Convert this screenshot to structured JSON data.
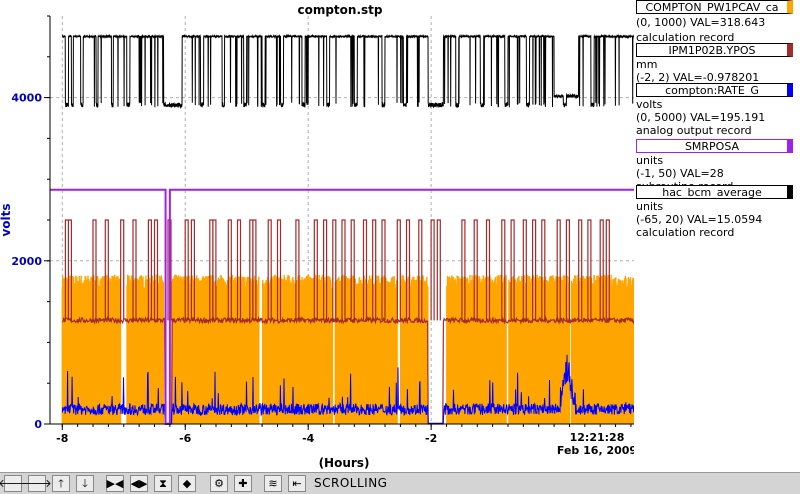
{
  "plot": {
    "title": "compton.stp",
    "xlabel": "(Hours)",
    "ylabel": "volts",
    "timestamp_time": "12:21:28",
    "timestamp_date": "Feb 16, 2009",
    "colors": {
      "black": "#000000",
      "orange": "#ffa500",
      "brown": "#a52a2a",
      "blue": "#0000ff",
      "purple": "#a020f0"
    }
  },
  "pvs": [
    {
      "name": "COMPTON_PW1PCAV_ca",
      "color": "#ffa500",
      "unit": "",
      "range": "(0, 1000) VAL=318.643",
      "type": "calculation record"
    },
    {
      "name": "IPM1P02B.YPOS",
      "color": "#a52a2a",
      "unit": "mm",
      "range": "(-2, 2) VAL=-0.978201",
      "type": ""
    },
    {
      "name": "compton:RATE_G",
      "color": "#0000ff",
      "unit": "volts",
      "range": "(0, 5000) VAL=195.191",
      "type": "analog output record"
    },
    {
      "name": "SMRPOSA",
      "color": "#a020f0",
      "unit": "units",
      "range": "(-1, 50) VAL=28",
      "type": "subroutine record"
    },
    {
      "name": "hac_bcm_average",
      "color": "#000000",
      "unit": "units",
      "range": "(-65, 20) VAL=15.0594",
      "type": "calculation record"
    }
  ],
  "toolbar": {
    "buttons": [
      {
        "name": "scroll-left-button",
        "glyph": "🡐"
      },
      {
        "name": "scroll-right-button",
        "glyph": "🡒"
      },
      {
        "name": "scroll-up-button",
        "glyph": "🡑"
      },
      {
        "name": "scroll-down-button",
        "glyph": "🡓"
      },
      {
        "name": "zoom-in-x-button",
        "glyph": "▶◀"
      },
      {
        "name": "zoom-out-x-button",
        "glyph": "◀▶"
      },
      {
        "name": "zoom-in-y-button",
        "glyph": "⧗"
      },
      {
        "name": "zoom-out-y-button",
        "glyph": "◆"
      },
      {
        "name": "config-button",
        "glyph": "⚙"
      },
      {
        "name": "add-button",
        "glyph": "✚"
      },
      {
        "name": "autoscale-button",
        "glyph": "≋"
      },
      {
        "name": "exit-button",
        "glyph": "⇤"
      }
    ],
    "mode": "SCROLLING"
  },
  "chart_data": {
    "type": "line",
    "title": "compton.stp",
    "xlabel": "(Hours)",
    "ylabel": "volts",
    "xlim": [
      -8.2,
      1.3
    ],
    "ylim": [
      0,
      5000
    ],
    "xticks": [
      -8,
      -6,
      -4,
      -2
    ],
    "xtick_labels": [
      "-8",
      "-6",
      "-4",
      "-2"
    ],
    "yticks": [
      0,
      2000,
      4000
    ],
    "ytick_labels": [
      "0",
      "2000",
      "4000"
    ],
    "grid": true,
    "series": [
      {
        "name": "COMPTON_PW1PCAV_ca",
        "color": "#ffa500",
        "description": "dense band 0-1800 volts, with gaps"
      },
      {
        "name": "IPM1P02B.YPOS",
        "color": "#a52a2a",
        "description": "about 1300 volts with spikes to 2500"
      },
      {
        "name": "compton:RATE_G",
        "color": "#0000ff",
        "description": "about 100-300 volts, bump near x=0.2"
      },
      {
        "name": "SMRPOSA",
        "color": "#a020f0",
        "description": "about 2870 volts, dip to 0 near x=-6.3"
      },
      {
        "name": "hac_bcm_average",
        "color": "#000000",
        "description": "toggles between about 3880 and 4750 volts"
      }
    ]
  }
}
